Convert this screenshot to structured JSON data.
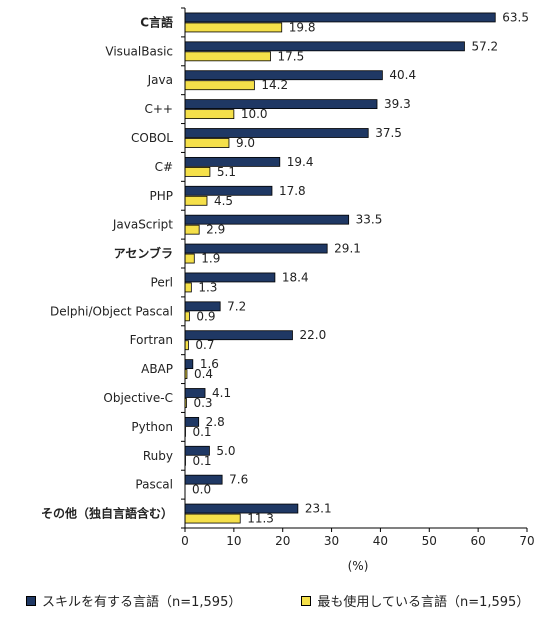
{
  "chart_data": {
    "type": "bar",
    "orientation": "horizontal",
    "categories": [
      "C言語",
      "VisualBasic",
      "Java",
      "C++",
      "COBOL",
      "C#",
      "PHP",
      "JavaScript",
      "アセンブラ",
      "Perl",
      "Delphi/Object Pascal",
      "Fortran",
      "ABAP",
      "Objective-C",
      "Python",
      "Ruby",
      "Pascal",
      "その他（独自言語含む）"
    ],
    "bold_categories": [
      "C言語",
      "アセンブラ",
      "その他（独自言語含む）"
    ],
    "series": [
      {
        "name": "スキルを有する言語（n=1,595）",
        "color": "#1F3864",
        "values": [
          63.5,
          57.2,
          40.4,
          39.3,
          37.5,
          19.4,
          17.8,
          33.5,
          29.1,
          18.4,
          7.2,
          22.0,
          1.6,
          4.1,
          2.8,
          5.0,
          7.6,
          23.1
        ],
        "labels": [
          "63.5",
          "57.2",
          "40.4",
          "39.3",
          "37.5",
          "19.4",
          "17.8",
          "33.5",
          "29.1",
          "18.4",
          "7.2",
          "22.0",
          "1.6",
          "4.1",
          "2.8",
          "5.0",
          "7.6",
          "23.1"
        ]
      },
      {
        "name": "最も使用している言語（n=1,595）",
        "color": "#F5E04A",
        "values": [
          19.8,
          17.5,
          14.2,
          10.0,
          9.0,
          5.1,
          4.5,
          2.9,
          1.9,
          1.3,
          0.9,
          0.7,
          0.4,
          0.3,
          0.1,
          0.1,
          0.0,
          11.3
        ],
        "labels": [
          "19.8",
          "17.5",
          "14.2",
          "10.0",
          "9.0",
          "5.1",
          "4.5",
          "2.9",
          "1.9",
          "1.3",
          "0.9",
          "0.7",
          "0.4",
          "0.3",
          "0.1",
          "0.1",
          "0.0",
          "11.3"
        ]
      }
    ],
    "xlim": [
      0,
      70
    ],
    "xticks": [
      "0",
      "10",
      "20",
      "30",
      "40",
      "50",
      "60",
      "70"
    ],
    "xlabel": "(%)",
    "grid": false,
    "legend_position": "bottom"
  }
}
